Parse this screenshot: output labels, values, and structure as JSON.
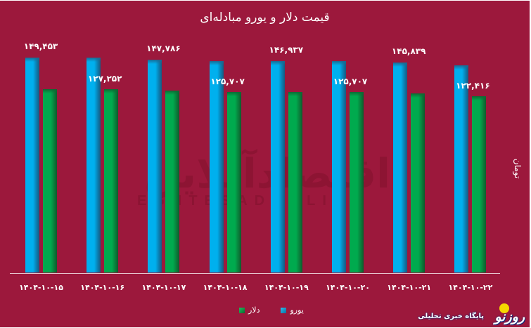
{
  "header": {
    "title": "قیمت دلار و یورو مبادله‌ای"
  },
  "watermark": {
    "text_fa": "اقتصادآنلاین",
    "text_en": "EGHTESADONLINE"
  },
  "legend": {
    "items": [
      {
        "key": "euro",
        "label": "یورو",
        "color": "#00b0ee"
      },
      {
        "key": "dollar",
        "label": "دلار",
        "color": "#00aa4e"
      }
    ]
  },
  "axis": {
    "ylabel": "تومان"
  },
  "brand": {
    "name": "روزنو",
    "subtitle": "پایگاه خبری تحلیلی"
  },
  "colors": {
    "background": "#9c183c",
    "euro": "#00b0ee",
    "dollar": "#00aa4e",
    "text": "#ffffff"
  },
  "chart_data": {
    "type": "bar",
    "title": "قیمت دلار و یورو مبادله‌ای",
    "xlabel": "",
    "ylabel": "تومان",
    "categories": [
      "۱۴۰۴-۱۰-۱۵",
      "۱۴۰۴-۱۰-۱۶",
      "۱۴۰۴-۱۰-۱۷",
      "۱۴۰۴-۱۰-۱۸",
      "۱۴۰۴-۱۰-۱۹",
      "۱۴۰۴-۱۰-۲۰",
      "۱۴۰۴-۱۰-۲۱",
      "۱۴۰۴-۱۰-۲۲"
    ],
    "series": [
      {
        "name": "یورو",
        "key": "euro",
        "values": [
          149453,
          149300,
          147786,
          146900,
          146937,
          146900,
          145839,
          143900
        ]
      },
      {
        "name": "دلار",
        "key": "dollar",
        "values": [
          127300,
          127252,
          126300,
          125707,
          125700,
          125707,
          124600,
          122416
        ]
      }
    ],
    "data_labels": [
      {
        "category_index": 0,
        "series": "euro",
        "text": "۱۴۹,۴۵۳"
      },
      {
        "category_index": 1,
        "series": "dollar",
        "text": "۱۲۷,۲۵۲"
      },
      {
        "category_index": 2,
        "series": "euro",
        "text": "۱۴۷,۷۸۶"
      },
      {
        "category_index": 3,
        "series": "dollar",
        "text": "۱۲۵,۷۰۷"
      },
      {
        "category_index": 4,
        "series": "euro",
        "text": "۱۴۶,۹۳۷"
      },
      {
        "category_index": 5,
        "series": "dollar",
        "text": "۱۲۵,۷۰۷"
      },
      {
        "category_index": 6,
        "series": "euro",
        "text": "۱۴۵,۸۳۹"
      },
      {
        "category_index": 7,
        "series": "dollar",
        "text": "۱۲۲,۴۱۶"
      }
    ],
    "ylim": [
      0,
      150000
    ],
    "grid": false,
    "legend_position": "bottom"
  }
}
